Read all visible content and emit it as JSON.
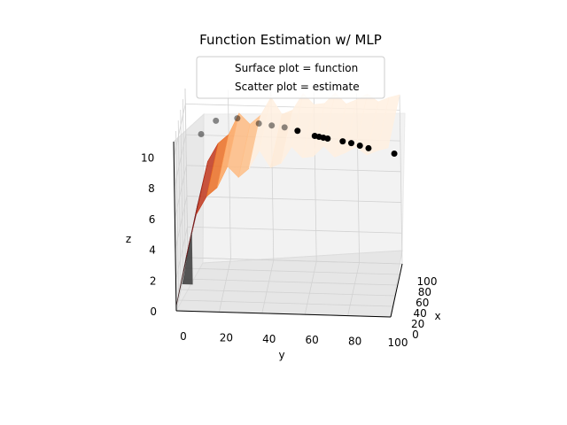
{
  "chart_data": {
    "type": "surface3d+scatter",
    "title": "Function Estimation w/ MLP",
    "xlabel": "x",
    "ylabel": "y",
    "zlabel": "z",
    "x_ticks": [
      "0",
      "20",
      "40",
      "60",
      "80",
      "100"
    ],
    "y_ticks": [
      "0",
      "20",
      "40",
      "60",
      "80",
      "100"
    ],
    "z_ticks": [
      "0",
      "2",
      "4",
      "6",
      "8",
      "10"
    ],
    "xlim": [
      0,
      100
    ],
    "ylim": [
      0,
      100
    ],
    "zlim": [
      0,
      11
    ],
    "legend": {
      "placement": "top-center",
      "entries": [
        "Surface plot = function",
        "Scatter plot = estimate"
      ]
    },
    "surface": {
      "colormap": "gist_heat",
      "z_profile_over_y": {
        "y": [
          0,
          5,
          10,
          15,
          20,
          25,
          30,
          35,
          40,
          45,
          50,
          55,
          60,
          65,
          70,
          75,
          80,
          85,
          90,
          95,
          100
        ],
        "z": [
          0.3,
          3.5,
          6.3,
          7.5,
          8.1,
          9.5,
          8.8,
          9.4,
          10.6,
          9.5,
          9.8,
          10.9,
          10.2,
          10.3,
          11.0,
          10.3,
          10.6,
          11.0,
          10.5,
          10.8,
          11.0
        ]
      }
    },
    "scatter": {
      "color": "black",
      "points": [
        {
          "y": 10,
          "z": 9.8
        },
        {
          "y": 17,
          "z": 10.7
        },
        {
          "y": 27,
          "z": 10.9
        },
        {
          "y": 37,
          "z": 10.6
        },
        {
          "y": 43,
          "z": 10.5
        },
        {
          "y": 49,
          "z": 10.4
        },
        {
          "y": 55,
          "z": 10.2
        },
        {
          "y": 63,
          "z": 9.9
        },
        {
          "y": 65,
          "z": 9.85
        },
        {
          "y": 67,
          "z": 9.8
        },
        {
          "y": 69,
          "z": 9.75
        },
        {
          "y": 76,
          "z": 9.6
        },
        {
          "y": 80,
          "z": 9.5
        },
        {
          "y": 84,
          "z": 9.35
        },
        {
          "y": 88,
          "z": 9.2
        },
        {
          "y": 100,
          "z": 8.9
        }
      ]
    }
  }
}
